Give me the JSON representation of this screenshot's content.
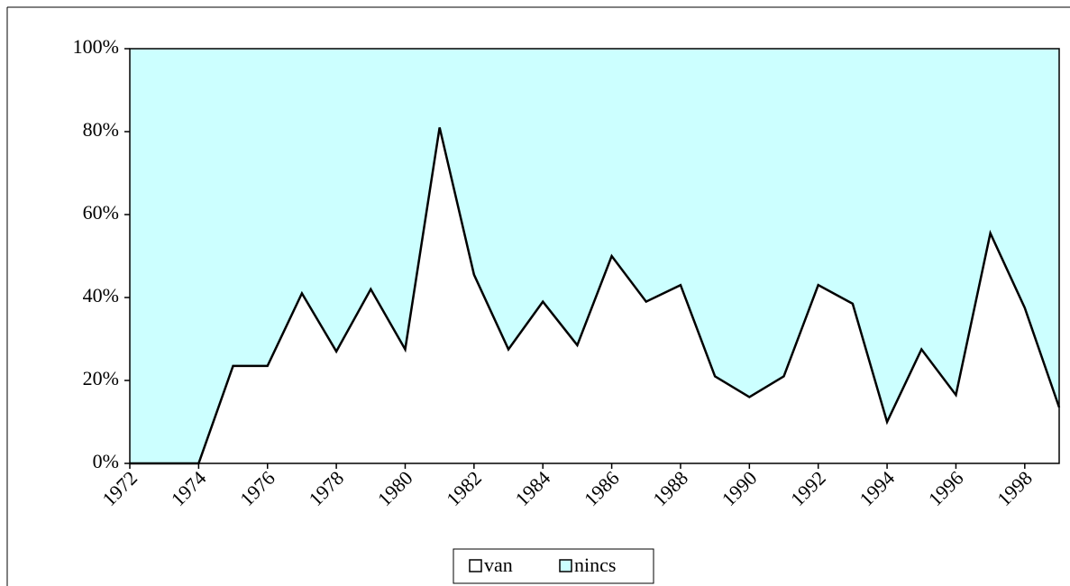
{
  "chart_data": {
    "type": "stacked_area",
    "categories": [
      "1972",
      null,
      "1974",
      null,
      "1976",
      null,
      "1978",
      null,
      "1980",
      null,
      "1982",
      null,
      "1984",
      null,
      "1986",
      null,
      "1988",
      null,
      "1990",
      null,
      "1992",
      null,
      "1994",
      null,
      "1996",
      null,
      "1998",
      null
    ],
    "series": [
      {
        "name": "van",
        "color": "#ffffff",
        "values": [
          0,
          0,
          0,
          23.5,
          23.5,
          41,
          27,
          42,
          27.5,
          81,
          45.5,
          27.5,
          39,
          28.5,
          50,
          39,
          43,
          21,
          16,
          21,
          43,
          38.5,
          10,
          27.5,
          16.5,
          55.5,
          37.5,
          13.5
        ]
      },
      {
        "name": "nincs",
        "color": "#ccffff",
        "values": [
          100,
          100,
          100,
          76.5,
          76.5,
          59,
          73,
          58,
          72.5,
          19,
          54.5,
          72.5,
          61,
          71.5,
          50,
          61,
          57,
          79,
          84,
          79,
          57,
          61.5,
          90,
          72.5,
          83.5,
          44.5,
          62.5,
          86.5
        ]
      }
    ],
    "ylim": [
      0,
      100
    ],
    "yticks": [
      {
        "value": 0,
        "label": "0%"
      },
      {
        "value": 20,
        "label": "20%"
      },
      {
        "value": 40,
        "label": "40%"
      },
      {
        "value": 60,
        "label": "60%"
      },
      {
        "value": 80,
        "label": "80%"
      },
      {
        "value": 100,
        "label": "100%"
      }
    ],
    "line_color": "#000000",
    "legend": "bottom"
  }
}
